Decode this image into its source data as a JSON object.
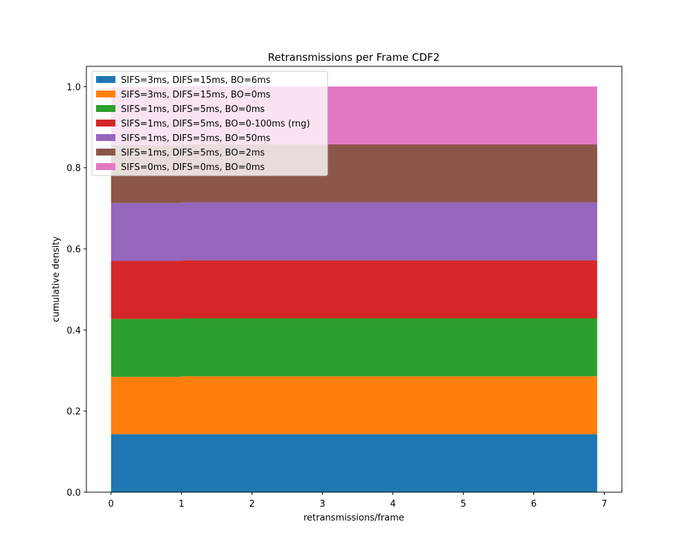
{
  "chart_data": {
    "type": "area",
    "title": "Retransmissions per Frame CDF2",
    "xlabel": "retransmissions/frame",
    "ylabel": "cumulative density",
    "xlim": [
      -0.35,
      7.25
    ],
    "ylim": [
      0.0,
      1.05
    ],
    "xticks": [
      0,
      1,
      2,
      3,
      4,
      5,
      6,
      7
    ],
    "yticks": [
      0.0,
      0.2,
      0.4,
      0.6,
      0.8,
      1.0
    ],
    "xtick_labels": [
      "0",
      "1",
      "2",
      "3",
      "4",
      "5",
      "6",
      "7"
    ],
    "ytick_labels": [
      "0.0",
      "0.2",
      "0.4",
      "0.6",
      "0.8",
      "1.0"
    ],
    "x": [
      0,
      1,
      1.0001,
      6.9
    ],
    "series": [
      {
        "name": "SIFS=3ms, DIFS=15ms, BO=6ms",
        "color": "#1f77b4",
        "values": [
          0.1429,
          0.1429,
          0.1429,
          0.1429
        ]
      },
      {
        "name": "SIFS=3ms, DIFS=15ms, BO=0ms",
        "color": "#ff7f0e",
        "values": [
          0.1414,
          0.1414,
          0.1429,
          0.1429
        ]
      },
      {
        "name": "SIFS=1ms, DIFS=5ms, BO=0ms",
        "color": "#2ca02c",
        "values": [
          0.1429,
          0.1429,
          0.1429,
          0.1429
        ]
      },
      {
        "name": "SIFS=1ms, DIFS=5ms, BO=0-100ms (rng)",
        "color": "#d62728",
        "values": [
          0.1429,
          0.1429,
          0.1429,
          0.1429
        ]
      },
      {
        "name": "SIFS=1ms, DIFS=5ms, BO=50ms",
        "color": "#9467bd",
        "values": [
          0.1429,
          0.1429,
          0.1429,
          0.1429
        ]
      },
      {
        "name": "SIFS=1ms, DIFS=5ms, BO=2ms",
        "color": "#8c564b",
        "values": [
          0.1429,
          0.1429,
          0.1429,
          0.1429
        ]
      },
      {
        "name": "SIFS=0ms, DIFS=0ms, BO=0ms",
        "color": "#e377c2",
        "values": [
          0.1429,
          0.1429,
          0.1429,
          0.1429
        ]
      }
    ],
    "legend": "upper-left",
    "grid": false
  }
}
